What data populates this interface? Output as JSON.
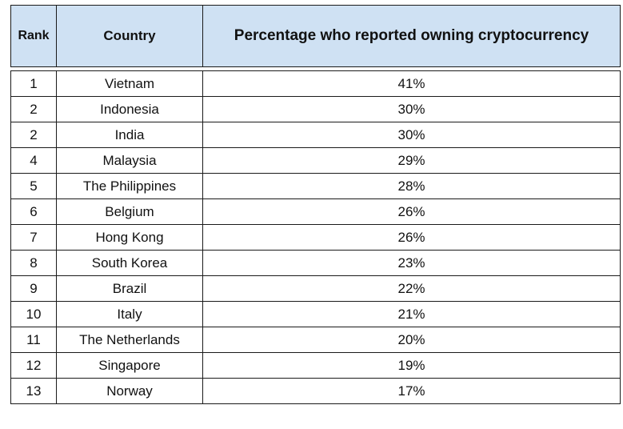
{
  "chart_data": {
    "type": "table",
    "columns": [
      "Rank",
      "Country",
      "Percentage who reported owning cryptocurrency"
    ],
    "rows": [
      [
        "1",
        "Vietnam",
        "41%"
      ],
      [
        "2",
        "Indonesia",
        "30%"
      ],
      [
        "2",
        "India",
        "30%"
      ],
      [
        "4",
        "Malaysia",
        "29%"
      ],
      [
        "5",
        "The Philippines",
        "28%"
      ],
      [
        "6",
        "Belgium",
        "26%"
      ],
      [
        "7",
        "Hong Kong",
        "26%"
      ],
      [
        "8",
        "South Korea",
        "23%"
      ],
      [
        "9",
        "Brazil",
        "22%"
      ],
      [
        "10",
        "Italy",
        "21%"
      ],
      [
        "11",
        "The Netherlands",
        "20%"
      ],
      [
        "12",
        "Singapore",
        "19%"
      ],
      [
        "13",
        "Norway",
        "17%"
      ]
    ],
    "values": [
      41,
      30,
      30,
      29,
      28,
      26,
      26,
      23,
      22,
      21,
      20,
      19,
      17
    ],
    "header_color": "#cfe1f3"
  }
}
